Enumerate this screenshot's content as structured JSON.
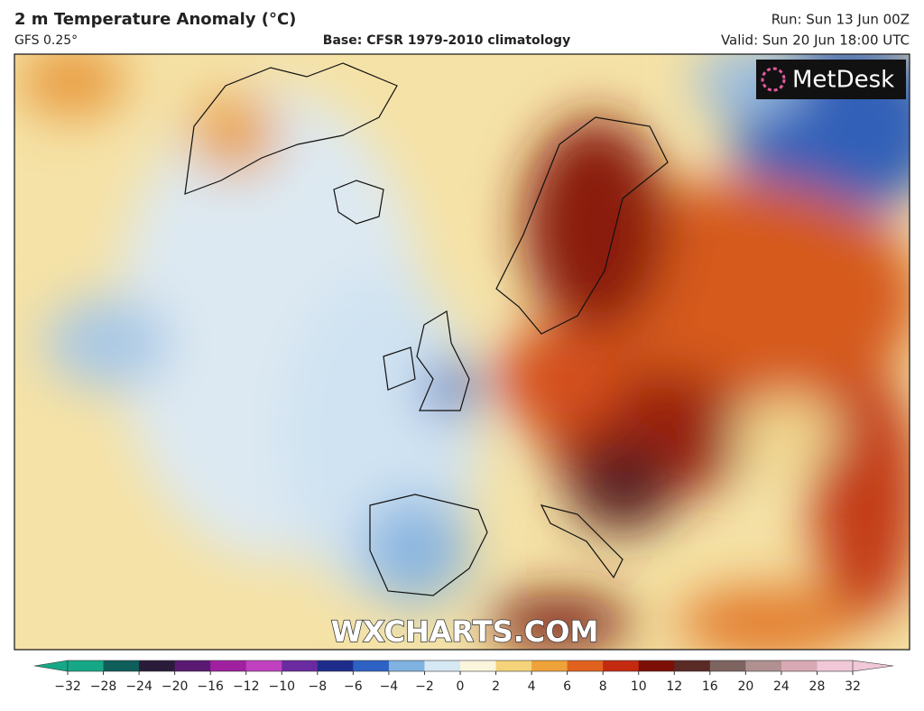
{
  "header": {
    "title": "2 m Temperature Anomaly (°C)",
    "model": "GFS 0.25°",
    "base": "Base: CFSR 1979-2010 climatology",
    "run": "Run: Sun 13 Jun 00Z",
    "valid": "Valid: Sun 20 Jun 18:00 UTC"
  },
  "map": {
    "logo": "MetDesk",
    "watermark": "WXCHARTS.COM"
  },
  "colorbar": {
    "ticks": [
      {
        "value": -32,
        "label": "−32"
      },
      {
        "value": -28,
        "label": "−28"
      },
      {
        "value": -24,
        "label": "−24"
      },
      {
        "value": -20,
        "label": "−20"
      },
      {
        "value": -16,
        "label": "−16"
      },
      {
        "value": -12,
        "label": "−12"
      },
      {
        "value": -10,
        "label": "−10"
      },
      {
        "value": -8,
        "label": "−8"
      },
      {
        "value": -6,
        "label": "−6"
      },
      {
        "value": -4,
        "label": "−4"
      },
      {
        "value": -2,
        "label": "−2"
      },
      0,
      2,
      4,
      6,
      8,
      10,
      12,
      16,
      20,
      24,
      28,
      32
    ],
    "colors": [
      "#16a886",
      "#0e5e5a",
      "#2a1b3a",
      "#5a1a72",
      "#a020a0",
      "#c040c0",
      "#6a2aa0",
      "#1e2c8c",
      "#2d62c4",
      "#7fb2e0",
      "#d6e8f4",
      "#fbf5dc",
      "#f4d37a",
      "#eea23a",
      "#e0621e",
      "#c42a10",
      "#7c1008",
      "#5a2a26",
      "#7e6460",
      "#b09090",
      "#d8a8b4",
      "#f0c8d8"
    ]
  }
}
